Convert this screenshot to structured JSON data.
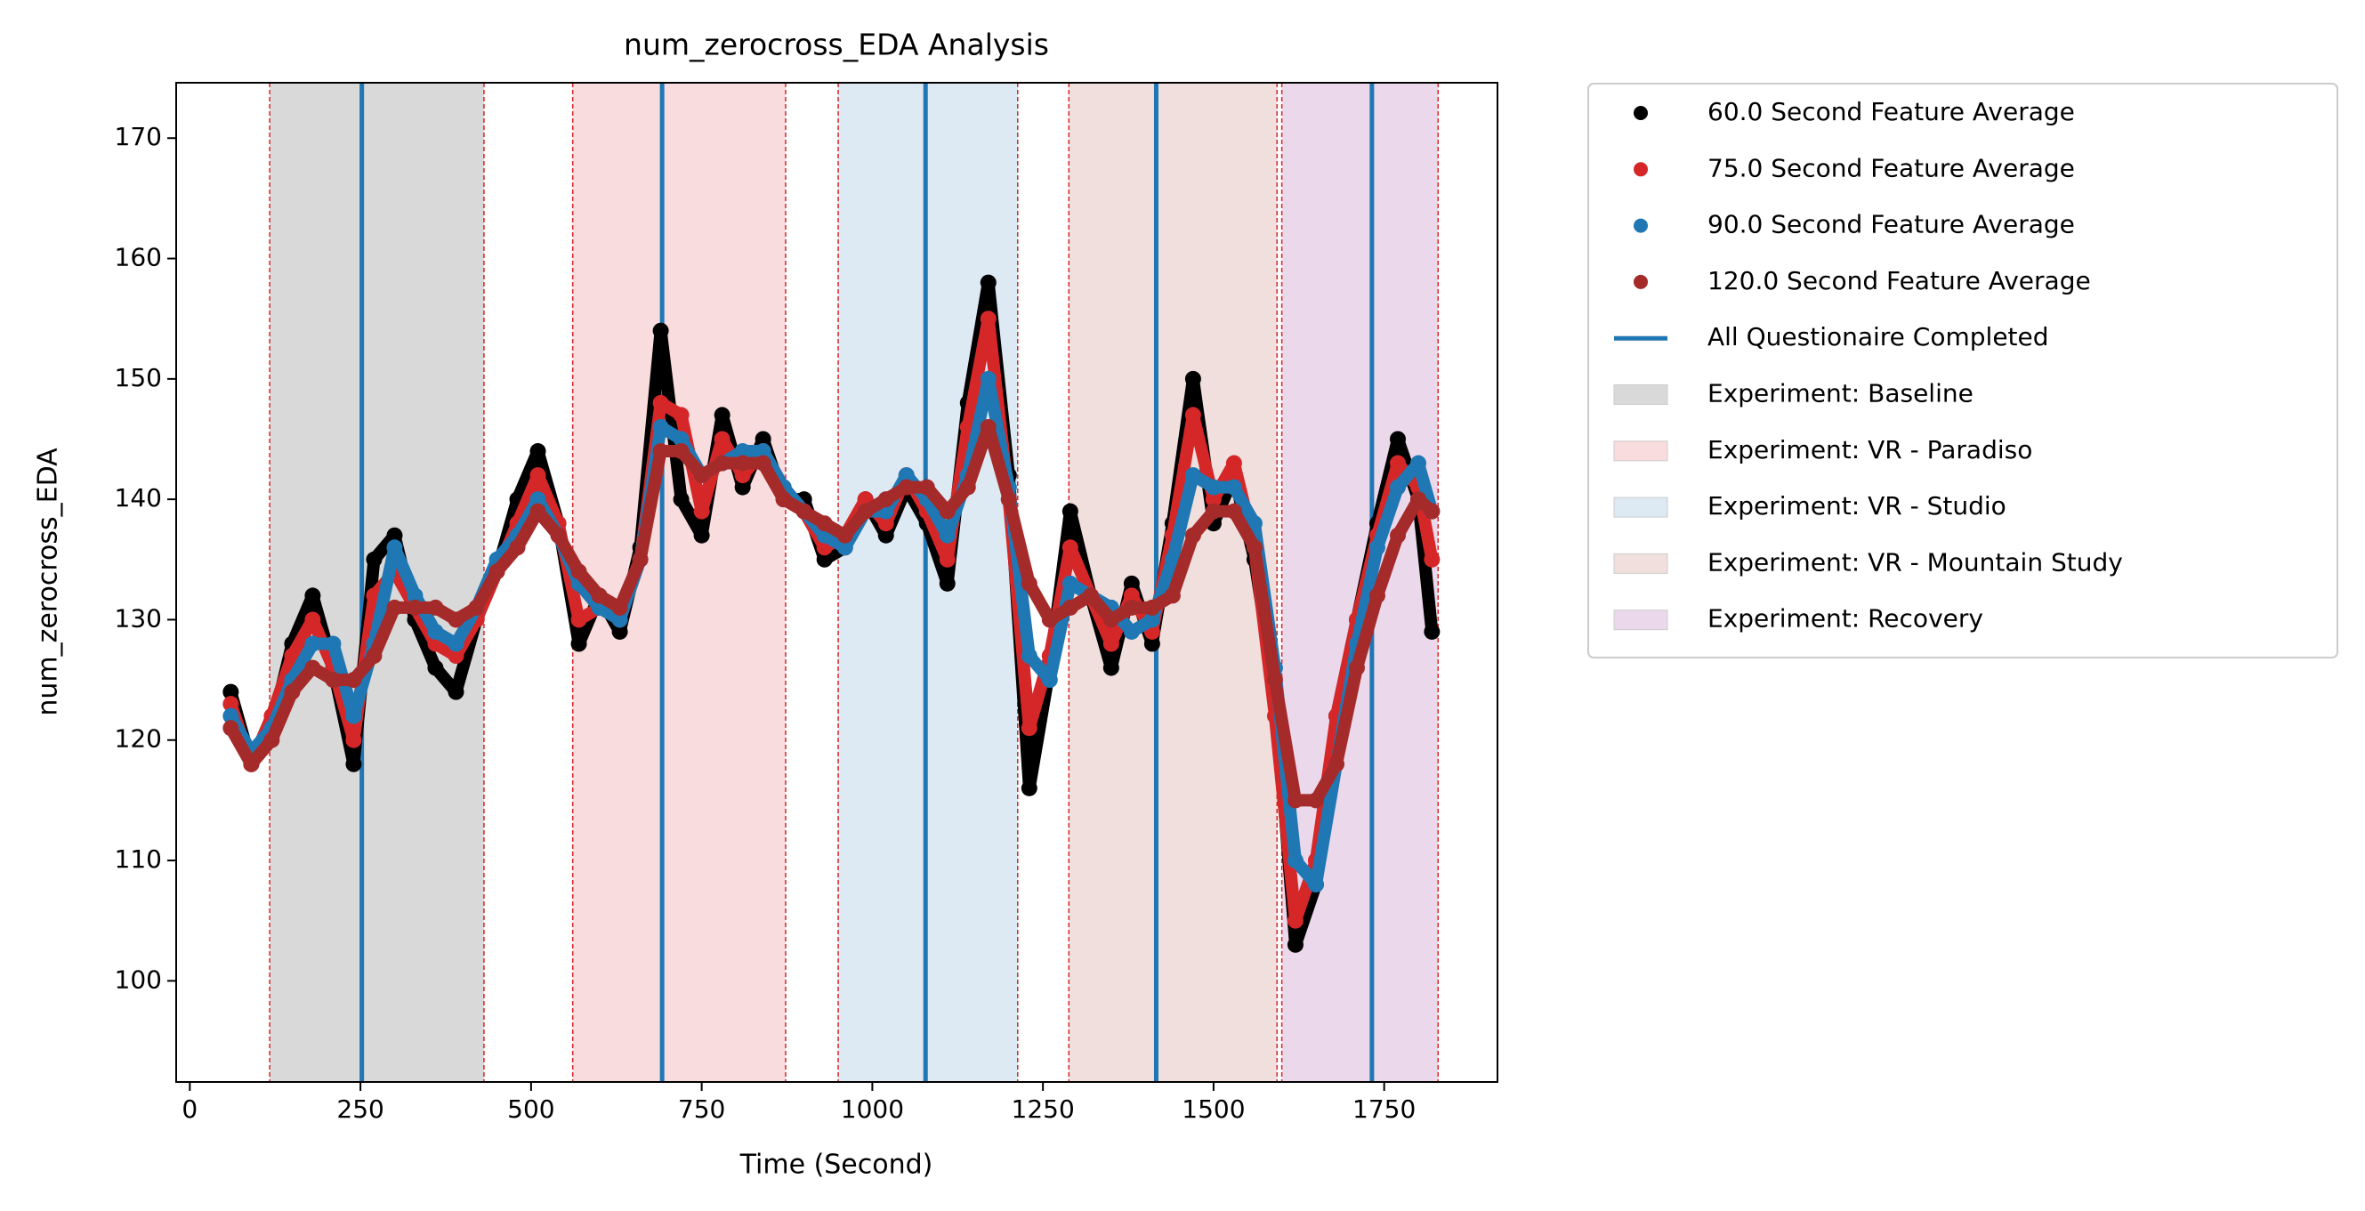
{
  "chart_data": {
    "type": "scatter",
    "title": "num_zerocross_EDA Analysis",
    "xlabel": "Time (Second)",
    "ylabel": "num_zerocross_EDA",
    "x": [
      60,
      90,
      120,
      150,
      180,
      210,
      240,
      270,
      300,
      330,
      360,
      390,
      420,
      450,
      480,
      510,
      540,
      570,
      600,
      630,
      660,
      690,
      720,
      750,
      780,
      810,
      840,
      870,
      900,
      930,
      960,
      990,
      1020,
      1050,
      1080,
      1110,
      1140,
      1170,
      1200,
      1230,
      1260,
      1290,
      1320,
      1350,
      1380,
      1410,
      1440,
      1470,
      1500,
      1530,
      1560,
      1590,
      1620,
      1650,
      1680,
      1710,
      1740,
      1770,
      1800,
      1820
    ],
    "series": [
      {
        "name": "60.0 Second Feature Average",
        "color": "#000000",
        "values": [
          124,
          118,
          121,
          128,
          132,
          126,
          118,
          135,
          137,
          130,
          126,
          124,
          130,
          134,
          140,
          144,
          138,
          128,
          132,
          129,
          136,
          154,
          140,
          137,
          147,
          141,
          145,
          140,
          140,
          135,
          136,
          140,
          137,
          141,
          138,
          133,
          148,
          158,
          142,
          116,
          126,
          139,
          132,
          126,
          133,
          128,
          138,
          150,
          138,
          142,
          135,
          124,
          103,
          108,
          122,
          130,
          138,
          145,
          140,
          129
        ]
      },
      {
        "name": "75.0 Second Feature Average",
        "color": "#d62728",
        "values": [
          123,
          118,
          122,
          127,
          130,
          126,
          120,
          132,
          134,
          131,
          128,
          127,
          130,
          134,
          138,
          142,
          138,
          130,
          131,
          130,
          135,
          148,
          147,
          139,
          145,
          142,
          144,
          141,
          139,
          136,
          137,
          140,
          138,
          142,
          139,
          135,
          146,
          155,
          140,
          121,
          127,
          136,
          132,
          128,
          132,
          129,
          137,
          147,
          140,
          143,
          136,
          122,
          105,
          110,
          122,
          130,
          137,
          143,
          141,
          135
        ]
      },
      {
        "name": "90.0 Second Feature Average",
        "color": "#1f77b4",
        "values": [
          122,
          119,
          121,
          125,
          128,
          128,
          122,
          128,
          136,
          132,
          129,
          128,
          131,
          135,
          137,
          140,
          137,
          133,
          131,
          130,
          135,
          146,
          145,
          142,
          143,
          144,
          144,
          141,
          139,
          137,
          136,
          139,
          139,
          142,
          140,
          137,
          142,
          150,
          141,
          127,
          125,
          133,
          132,
          131,
          129,
          130,
          135,
          142,
          141,
          141,
          138,
          126,
          110,
          108,
          118,
          128,
          136,
          141,
          143,
          139
        ]
      },
      {
        "name": "120.0 Second Feature Average",
        "color": "#a52a2a",
        "values": [
          121,
          118,
          120,
          124,
          126,
          125,
          125,
          127,
          131,
          131,
          131,
          130,
          131,
          134,
          136,
          139,
          137,
          134,
          132,
          131,
          135,
          144,
          144,
          142,
          143,
          143,
          143,
          140,
          139,
          138,
          137,
          139,
          140,
          141,
          141,
          139,
          141,
          146,
          140,
          133,
          130,
          131,
          132,
          130,
          131,
          131,
          132,
          137,
          139,
          139,
          136,
          125,
          115,
          115,
          118,
          126,
          132,
          137,
          140,
          139
        ]
      }
    ],
    "questionnaire": {
      "name": "All Questionaire Completed",
      "color": "#1f77b4",
      "x": [
        252,
        692,
        1078,
        1416,
        1732
      ]
    },
    "spans": [
      {
        "name": "Experiment: Baseline",
        "color": "#d9d9d9",
        "xlim": [
          117,
          431
        ]
      },
      {
        "name": "Experiment: VR - Paradiso",
        "color": "#f9dcdd",
        "xlim": [
          561,
          873
        ]
      },
      {
        "name": "Experiment: VR - Studio",
        "color": "#dde9f3",
        "xlim": [
          950,
          1213
        ]
      },
      {
        "name": "Experiment: VR - Mountain Study",
        "color": "#f0dfdd",
        "xlim": [
          1288,
          1593
        ]
      },
      {
        "name": "Experiment: Recovery",
        "color": "#ebd9eb",
        "xlim": [
          1600,
          1829
        ]
      }
    ],
    "xlim": [
      -20,
      1916
    ],
    "ylim": [
      91.6,
      174.6
    ],
    "xticks": [
      0,
      250,
      500,
      750,
      1000,
      1250,
      1500,
      1750
    ],
    "yticks": [
      100,
      110,
      120,
      130,
      140,
      150,
      160,
      170
    ],
    "legend": "outside right"
  }
}
